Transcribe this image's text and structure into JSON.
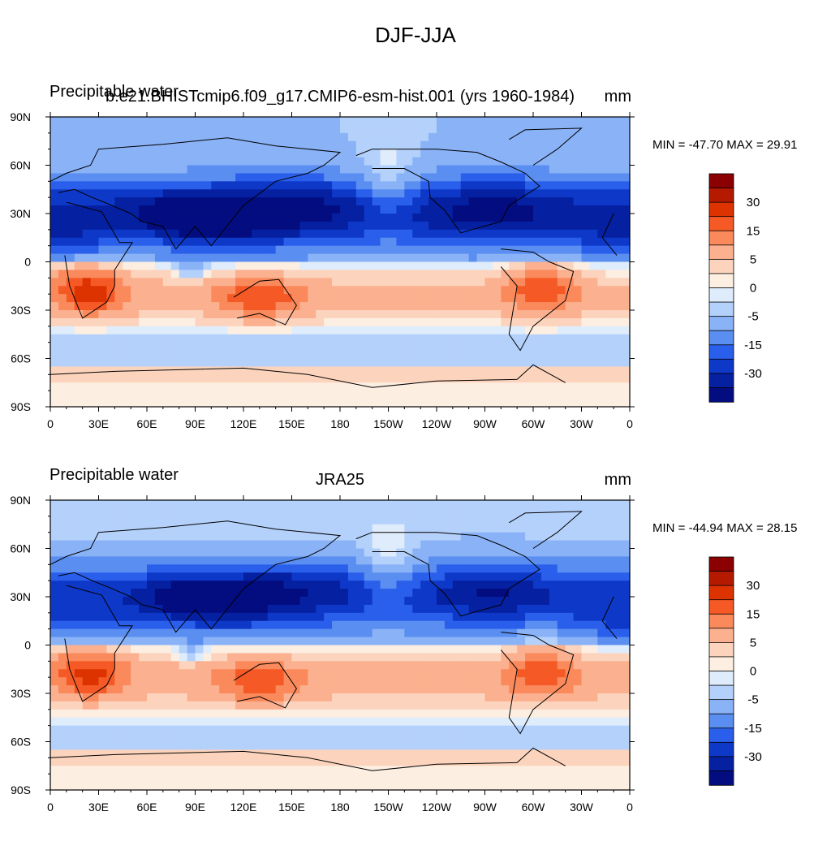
{
  "page": {
    "title": "DJF-JJA"
  },
  "panels": [
    {
      "left_label": "Precipitable water",
      "center_label": "b.e21.BHISTcmip6.f09_g17.CMIP6-esm-hist.001 (yrs 1960-1984)",
      "right_label": "mm",
      "minmax": "MIN = -47.70 MAX =  29.91",
      "dataset": "model"
    },
    {
      "left_label": "Precipitable water",
      "center_label": "JRA25",
      "right_label": "mm",
      "minmax": "MIN = -44.94 MAX =  28.15",
      "dataset": "reanalysis"
    }
  ],
  "axes": {
    "x_ticks": [
      "0",
      "30E",
      "60E",
      "90E",
      "120E",
      "150E",
      "180",
      "150W",
      "120W",
      "90W",
      "60W",
      "30W",
      "0"
    ],
    "y_ticks": [
      "90N",
      "60N",
      "30N",
      "0",
      "30S",
      "60S",
      "90S"
    ]
  },
  "colorbar": {
    "labels": [
      "30",
      "15",
      "5",
      "0",
      "-5",
      "-15",
      "-30"
    ],
    "colors": [
      "#8b0000",
      "#b51a00",
      "#dc3300",
      "#f55a26",
      "#fa8a5c",
      "#fbb08f",
      "#fcd4bd",
      "#fdeee2",
      "#deecfb",
      "#b4d1fb",
      "#8ab2f7",
      "#5a8ef0",
      "#2a5fec",
      "#0e38c8",
      "#0520a0",
      "#030d80"
    ]
  },
  "chart_data": [
    {
      "type": "heatmap",
      "title": "b.e21.BHISTcmip6.f09_g17.CMIP6-esm-hist.001 (yrs 1960-1984)",
      "variable": "Precipitable water",
      "units": "mm",
      "season": "DJF-JJA",
      "min": -47.7,
      "max": 29.91,
      "xlim": [
        0,
        360
      ],
      "ylim": [
        -90,
        90
      ],
      "contour_levels": [
        -35,
        -30,
        -25,
        -20,
        -15,
        -10,
        -5,
        -2,
        0,
        2,
        5,
        10,
        15,
        20,
        25,
        30,
        35
      ]
    },
    {
      "type": "heatmap",
      "title": "JRA25",
      "variable": "Precipitable water",
      "units": "mm",
      "season": "DJF-JJA",
      "min": -44.94,
      "max": 28.15,
      "xlim": [
        0,
        360
      ],
      "ylim": [
        -90,
        90
      ],
      "contour_levels": [
        -35,
        -30,
        -25,
        -20,
        -15,
        -10,
        -5,
        -2,
        0,
        2,
        5,
        10,
        15,
        20,
        25,
        30,
        35
      ]
    }
  ]
}
